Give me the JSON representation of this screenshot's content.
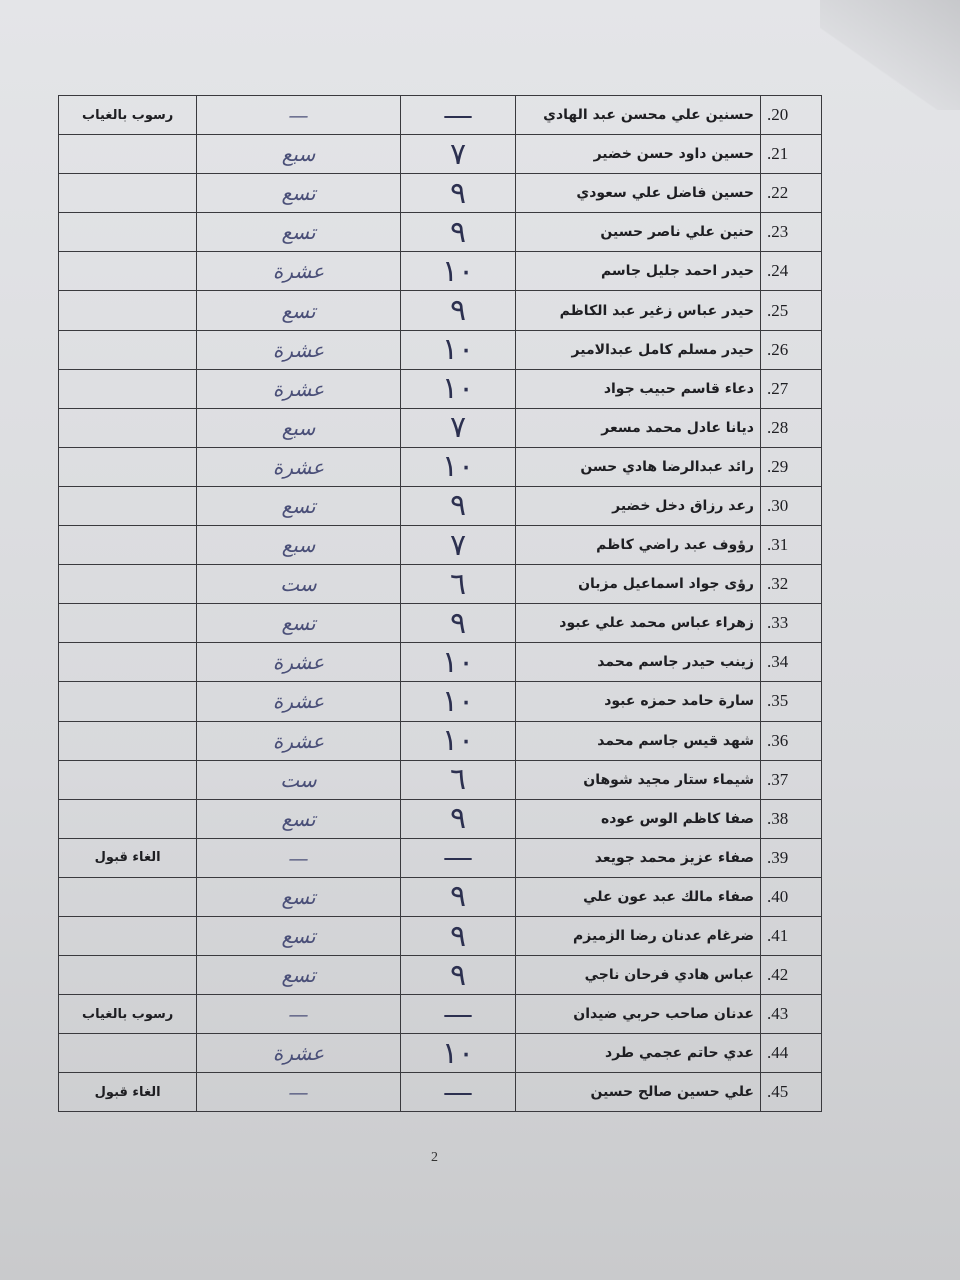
{
  "page_number": "2",
  "rows": [
    {
      "num": ".20",
      "name": "حسنين علي محسن عبد الهادي",
      "digit": "—",
      "word": "—",
      "note": "رسوب بالغياب"
    },
    {
      "num": ".21",
      "name": "حسين داود حسن خضير",
      "digit": "٧",
      "word": "سبع",
      "note": ""
    },
    {
      "num": ".22",
      "name": "حسين فاضل علي سعودي",
      "digit": "٩",
      "word": "تسع",
      "note": ""
    },
    {
      "num": ".23",
      "name": "حنين علي ناصر حسين",
      "digit": "٩",
      "word": "تسع",
      "note": ""
    },
    {
      "num": ".24",
      "name": "حيدر احمد جليل جاسم",
      "digit": "١٠",
      "word": "عشرة",
      "note": ""
    },
    {
      "num": ".25",
      "name": "حيدر عباس زغير عبد الكاظم",
      "digit": "٩",
      "word": "تسع",
      "note": ""
    },
    {
      "num": ".26",
      "name": "حيدر مسلم كامل عبدالامير",
      "digit": "١٠",
      "word": "عشرة",
      "note": ""
    },
    {
      "num": ".27",
      "name": "دعاء قاسم حبيب جواد",
      "digit": "١٠",
      "word": "عشرة",
      "note": ""
    },
    {
      "num": ".28",
      "name": "ديانا عادل محمد مسعر",
      "digit": "٧",
      "word": "سبع",
      "note": ""
    },
    {
      "num": ".29",
      "name": "رائد عبدالرضا هادي حسن",
      "digit": "١٠",
      "word": "عشرة",
      "note": ""
    },
    {
      "num": ".30",
      "name": "رعد رزاق دخل خضير",
      "digit": "٩",
      "word": "تسع",
      "note": ""
    },
    {
      "num": ".31",
      "name": "رؤوف عبد راضي كاظم",
      "digit": "٧",
      "word": "سبع",
      "note": ""
    },
    {
      "num": ".32",
      "name": "رؤى جواد اسماعيل مزبان",
      "digit": "٦",
      "word": "ست",
      "note": ""
    },
    {
      "num": ".33",
      "name": "زهراء عباس محمد علي عبود",
      "digit": "٩",
      "word": "تسع",
      "note": ""
    },
    {
      "num": ".34",
      "name": "زينب حيدر جاسم محمد",
      "digit": "١٠",
      "word": "عشرة",
      "note": ""
    },
    {
      "num": ".35",
      "name": "سارة حامد حمزه عبود",
      "digit": "١٠",
      "word": "عشرة",
      "note": ""
    },
    {
      "num": ".36",
      "name": "شهد قيس جاسم محمد",
      "digit": "١٠",
      "word": "عشرة",
      "note": ""
    },
    {
      "num": ".37",
      "name": "شيماء ستار مجيد شوهان",
      "digit": "٦",
      "word": "ست",
      "note": ""
    },
    {
      "num": ".38",
      "name": "صفا كاظم الوس عوده",
      "digit": "٩",
      "word": "تسع",
      "note": ""
    },
    {
      "num": ".39",
      "name": "صفاء عزيز محمد جويعد",
      "digit": "—",
      "word": "—",
      "note": "الغاء قبول"
    },
    {
      "num": ".40",
      "name": "صفاء مالك عبد عون علي",
      "digit": "٩",
      "word": "تسع",
      "note": ""
    },
    {
      "num": ".41",
      "name": "ضرغام عدنان رضا الزميزم",
      "digit": "٩",
      "word": "تسع",
      "note": ""
    },
    {
      "num": ".42",
      "name": "عباس هادي فرحان ناجي",
      "digit": "٩",
      "word": "تسع",
      "note": ""
    },
    {
      "num": ".43",
      "name": "عدنان صاحب حربي ضيدان",
      "digit": "—",
      "word": "—",
      "note": "رسوب بالغياب"
    },
    {
      "num": ".44",
      "name": "عدي حاتم عجمي طرد",
      "digit": "١٠",
      "word": "عشرة",
      "note": ""
    },
    {
      "num": ".45",
      "name": "علي حسين صالح حسين",
      "digit": "—",
      "word": "—",
      "note": "الغاء قبول"
    }
  ]
}
